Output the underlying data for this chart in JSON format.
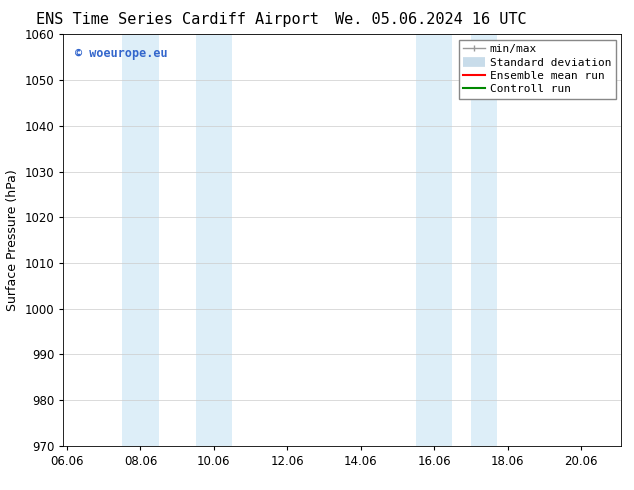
{
  "title_left": "ENS Time Series Cardiff Airport",
  "title_right": "We. 05.06.2024 16 UTC",
  "ylabel": "Surface Pressure (hPa)",
  "ylim": [
    970,
    1060
  ],
  "yticks": [
    970,
    980,
    990,
    1000,
    1010,
    1020,
    1030,
    1040,
    1050,
    1060
  ],
  "xlim_start": 5.9,
  "xlim_end": 21.1,
  "xtick_labels": [
    "06.06",
    "08.06",
    "10.06",
    "12.06",
    "14.06",
    "16.06",
    "18.06",
    "20.06"
  ],
  "xtick_positions": [
    6.0,
    8.0,
    10.0,
    12.0,
    14.0,
    16.0,
    18.0,
    20.0
  ],
  "shaded_bands": [
    {
      "x_start": 7.5,
      "x_end": 8.5,
      "color": "#ddeef8"
    },
    {
      "x_start": 9.5,
      "x_end": 10.5,
      "color": "#ddeef8"
    },
    {
      "x_start": 15.5,
      "x_end": 16.5,
      "color": "#ddeef8"
    },
    {
      "x_start": 17.0,
      "x_end": 17.7,
      "color": "#ddeef8"
    }
  ],
  "watermark_text": "© woeurope.eu",
  "watermark_color": "#3366cc",
  "bg_color": "#ffffff",
  "plot_bg_color": "#ffffff",
  "grid_color": "#cccccc",
  "legend_items": [
    {
      "label": "min/max",
      "color": "#aaaaaa",
      "lw": 1.0
    },
    {
      "label": "Standard deviation",
      "color": "#c8dcea",
      "lw": 7
    },
    {
      "label": "Ensemble mean run",
      "color": "#ff0000",
      "lw": 1.5
    },
    {
      "label": "Controll run",
      "color": "#008800",
      "lw": 1.5
    }
  ],
  "title_fontsize": 11,
  "axis_label_fontsize": 9,
  "tick_fontsize": 8.5,
  "legend_fontsize": 8
}
